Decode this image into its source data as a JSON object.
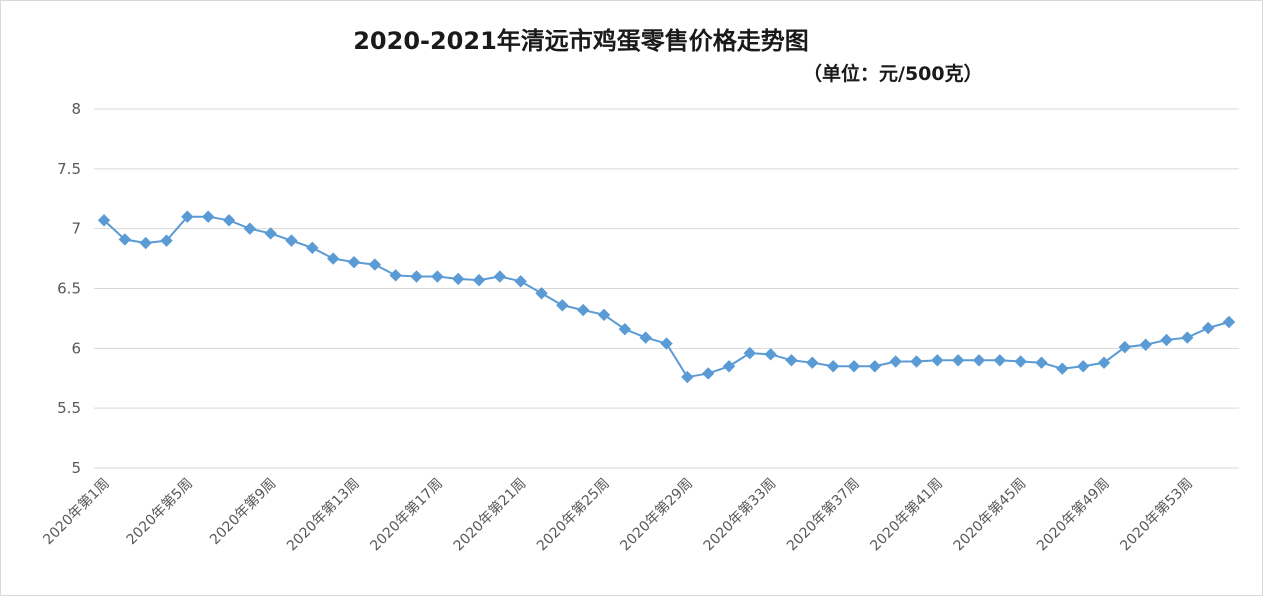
{
  "chart_data": {
    "type": "line",
    "title": "2020-2021年清远市鸡蛋零售价格走势图",
    "subtitle": "（单位：元/500克）",
    "xlabel": "",
    "ylabel": "",
    "ylim": [
      5,
      8
    ],
    "yticks": [
      "5",
      "5.5",
      "6",
      "6.5",
      "7",
      "7.5",
      "8"
    ],
    "grid": true,
    "legend": "none",
    "line_color": "#5b9bd5",
    "categories": [
      "2020年第1周",
      "2020年第2周",
      "2020年第3周",
      "2020年第4周",
      "2020年第5周",
      "2020年第6周",
      "2020年第7周",
      "2020年第8周",
      "2020年第9周",
      "2020年第10周",
      "2020年第11周",
      "2020年第12周",
      "2020年第13周",
      "2020年第14周",
      "2020年第15周",
      "2020年第16周",
      "2020年第17周",
      "2020年第18周",
      "2020年第19周",
      "2020年第20周",
      "2020年第21周",
      "2020年第22周",
      "2020年第23周",
      "2020年第24周",
      "2020年第25周",
      "2020年第26周",
      "2020年第27周",
      "2020年第28周",
      "2020年第29周",
      "2020年第30周",
      "2020年第31周",
      "2020年第32周",
      "2020年第33周",
      "2020年第34周",
      "2020年第35周",
      "2020年第36周",
      "2020年第37周",
      "2020年第38周",
      "2020年第39周",
      "2020年第40周",
      "2020年第41周",
      "2020年第42周",
      "2020年第43周",
      "2020年第44周",
      "2020年第45周",
      "2020年第46周",
      "2020年第47周",
      "2020年第48周",
      "2020年第49周",
      "2020年第50周",
      "2020年第51周",
      "2020年第52周",
      "2020年第53周",
      "2020年第54周",
      "2020年第55周"
    ],
    "x_tick_labels": [
      "2020年第1周",
      "2020年第5周",
      "2020年第9周",
      "2020年第13周",
      "2020年第17周",
      "2020年第21周",
      "2020年第25周",
      "2020年第29周",
      "2020年第33周",
      "2020年第37周",
      "2020年第41周",
      "2020年第45周",
      "2020年第49周",
      "2020年第53周"
    ],
    "x_tick_every": 4,
    "values": [
      7.07,
      6.91,
      6.88,
      6.9,
      7.1,
      7.1,
      7.07,
      7.0,
      6.96,
      6.9,
      6.84,
      6.75,
      6.72,
      6.7,
      6.61,
      6.6,
      6.6,
      6.58,
      6.57,
      6.6,
      6.56,
      6.46,
      6.36,
      6.32,
      6.28,
      6.16,
      6.09,
      6.04,
      5.76,
      5.79,
      5.85,
      5.96,
      5.95,
      5.9,
      5.88,
      5.85,
      5.85,
      5.85,
      5.89,
      5.89,
      5.9,
      5.9,
      5.9,
      5.9,
      5.89,
      5.88,
      5.83,
      5.85,
      5.88,
      6.01,
      6.03,
      6.07,
      6.09,
      6.17,
      6.22
    ]
  }
}
